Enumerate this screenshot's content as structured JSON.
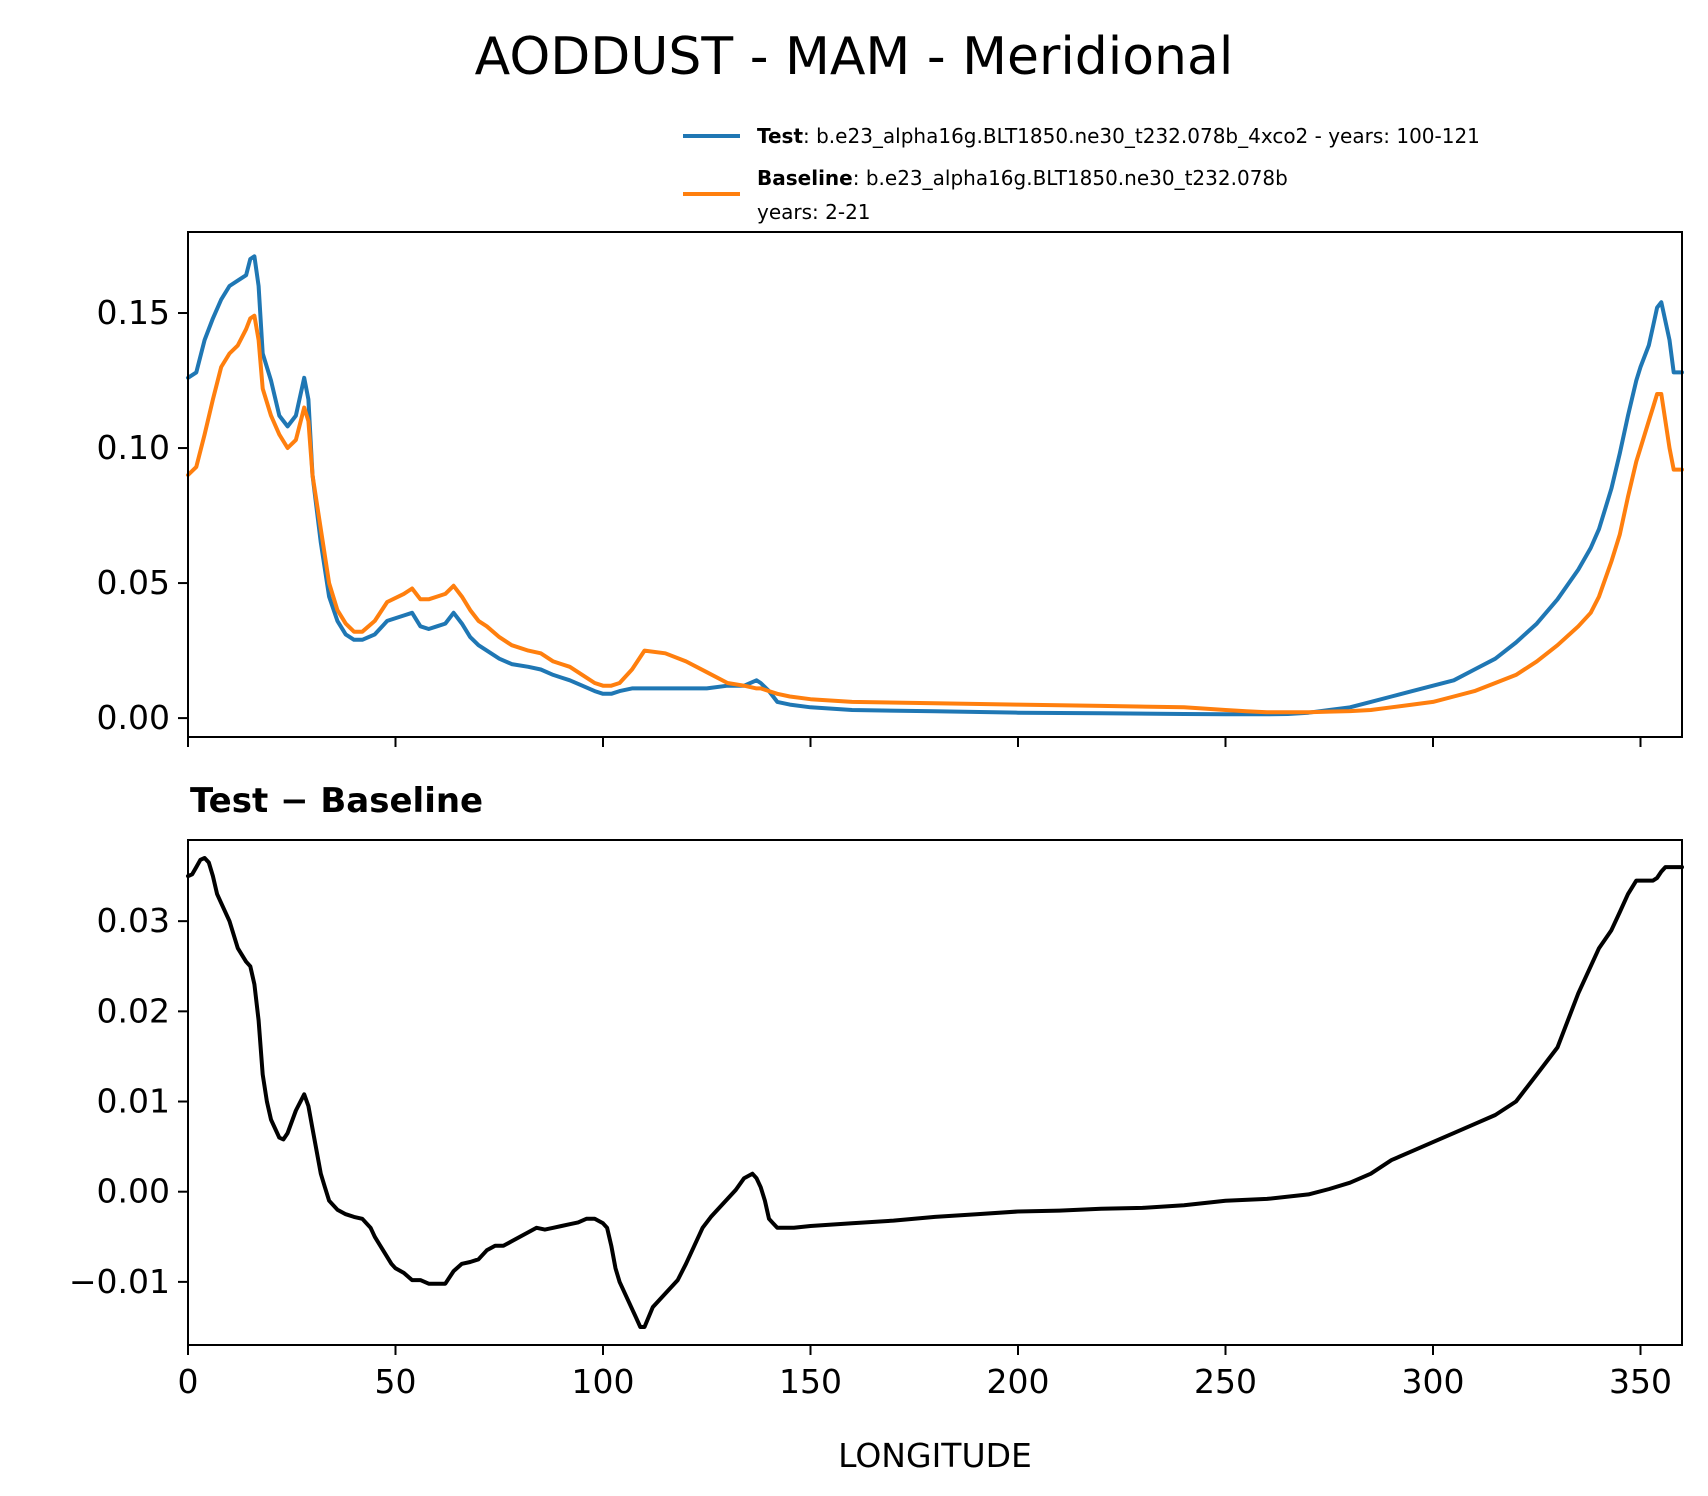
{
  "chart_data": [
    {
      "type": "line",
      "title": "AODDUST - MAM - Meridional",
      "xlim": [
        0,
        360
      ],
      "ylim": [
        -0.007,
        0.18
      ],
      "yticks": [
        "0.00",
        "0.05",
        "0.10",
        "0.15"
      ],
      "grid": false,
      "legend_placement": "top-right",
      "series": [
        {
          "name": "Test",
          "legend_desc": ": b.e23_alpha16g.BLT1850.ne30_t232.078b_4xco2 - years: 100-121",
          "color": "#1f77b4",
          "x": [
            0,
            2,
            4,
            6,
            8,
            10,
            12,
            14,
            15,
            16,
            17,
            18,
            20,
            22,
            24,
            26,
            28,
            29,
            30,
            32,
            34,
            36,
            38,
            40,
            42,
            45,
            48,
            52,
            54,
            56,
            58,
            60,
            62,
            64,
            66,
            68,
            70,
            72,
            75,
            78,
            82,
            85,
            88,
            90,
            92,
            95,
            98,
            100,
            102,
            104,
            107,
            110,
            115,
            120,
            125,
            130,
            134,
            137,
            138,
            140,
            142,
            145,
            150,
            160,
            180,
            200,
            220,
            240,
            250,
            255,
            260,
            265,
            270,
            275,
            280,
            285,
            290,
            295,
            300,
            305,
            310,
            315,
            320,
            325,
            330,
            335,
            338,
            340,
            343,
            345,
            347,
            349,
            350,
            352,
            353,
            354,
            355,
            357,
            358,
            360
          ],
          "y": [
            0.126,
            0.128,
            0.14,
            0.148,
            0.155,
            0.16,
            0.162,
            0.164,
            0.17,
            0.171,
            0.16,
            0.135,
            0.125,
            0.112,
            0.108,
            0.112,
            0.126,
            0.118,
            0.09,
            0.065,
            0.045,
            0.036,
            0.031,
            0.029,
            0.029,
            0.031,
            0.036,
            0.038,
            0.039,
            0.034,
            0.033,
            0.034,
            0.035,
            0.039,
            0.035,
            0.03,
            0.027,
            0.025,
            0.022,
            0.02,
            0.019,
            0.018,
            0.016,
            0.015,
            0.014,
            0.012,
            0.01,
            0.009,
            0.009,
            0.01,
            0.011,
            0.011,
            0.011,
            0.011,
            0.011,
            0.012,
            0.012,
            0.014,
            0.013,
            0.01,
            0.006,
            0.005,
            0.004,
            0.003,
            0.0025,
            0.002,
            0.0018,
            0.0015,
            0.0014,
            0.0014,
            0.0014,
            0.0015,
            0.002,
            0.003,
            0.004,
            0.006,
            0.008,
            0.01,
            0.012,
            0.014,
            0.018,
            0.022,
            0.028,
            0.035,
            0.044,
            0.055,
            0.063,
            0.07,
            0.085,
            0.098,
            0.112,
            0.125,
            0.13,
            0.138,
            0.145,
            0.152,
            0.154,
            0.14,
            0.128,
            0.128
          ]
        },
        {
          "name": "Baseline",
          "legend_desc": ": b.e23_alpha16g.BLT1850.ne30_t232.078b",
          "legend_desc2": "years: 2-21",
          "color": "#ff7f0e",
          "x": [
            0,
            2,
            4,
            6,
            8,
            10,
            12,
            14,
            15,
            16,
            17,
            18,
            20,
            22,
            24,
            26,
            28,
            29,
            30,
            32,
            34,
            36,
            38,
            40,
            42,
            45,
            48,
            52,
            54,
            56,
            58,
            60,
            62,
            64,
            66,
            68,
            70,
            72,
            75,
            78,
            82,
            85,
            88,
            90,
            92,
            95,
            98,
            100,
            102,
            104,
            107,
            110,
            115,
            120,
            125,
            130,
            134,
            137,
            138,
            140,
            142,
            145,
            150,
            160,
            180,
            200,
            220,
            240,
            250,
            255,
            260,
            265,
            270,
            275,
            280,
            285,
            290,
            295,
            300,
            305,
            310,
            315,
            320,
            325,
            330,
            335,
            338,
            340,
            343,
            345,
            347,
            349,
            350,
            352,
            353,
            354,
            355,
            357,
            358,
            360
          ],
          "y": [
            0.09,
            0.093,
            0.105,
            0.118,
            0.13,
            0.135,
            0.138,
            0.144,
            0.148,
            0.149,
            0.14,
            0.122,
            0.112,
            0.105,
            0.1,
            0.103,
            0.115,
            0.11,
            0.09,
            0.07,
            0.05,
            0.04,
            0.035,
            0.032,
            0.032,
            0.036,
            0.043,
            0.046,
            0.048,
            0.044,
            0.044,
            0.045,
            0.046,
            0.049,
            0.045,
            0.04,
            0.036,
            0.034,
            0.03,
            0.027,
            0.025,
            0.024,
            0.021,
            0.02,
            0.019,
            0.016,
            0.013,
            0.012,
            0.012,
            0.013,
            0.018,
            0.025,
            0.024,
            0.021,
            0.017,
            0.013,
            0.012,
            0.011,
            0.011,
            0.01,
            0.009,
            0.008,
            0.007,
            0.006,
            0.0055,
            0.005,
            0.0045,
            0.004,
            0.003,
            0.0025,
            0.0022,
            0.0022,
            0.0022,
            0.0024,
            0.0026,
            0.003,
            0.004,
            0.005,
            0.006,
            0.008,
            0.01,
            0.013,
            0.016,
            0.021,
            0.027,
            0.034,
            0.039,
            0.045,
            0.058,
            0.068,
            0.082,
            0.095,
            0.1,
            0.11,
            0.115,
            0.12,
            0.12,
            0.1,
            0.092,
            0.092
          ]
        }
      ]
    },
    {
      "type": "line",
      "title": "Test − Baseline",
      "xlabel": "LONGITUDE",
      "xlim": [
        0,
        360
      ],
      "ylim": [
        -0.017,
        0.039
      ],
      "xticks": [
        "0",
        "50",
        "100",
        "150",
        "200",
        "250",
        "300",
        "350"
      ],
      "yticks": [
        "−0.01",
        "0.00",
        "0.01",
        "0.02",
        "0.03"
      ],
      "grid": false,
      "series": [
        {
          "color": "#000000",
          "x": [
            0,
            1,
            2,
            3,
            4,
            5,
            6,
            7,
            8,
            10,
            12,
            14,
            15,
            16,
            17,
            18,
            19,
            20,
            22,
            23,
            24,
            26,
            28,
            29,
            30,
            32,
            33,
            34,
            36,
            38,
            40,
            42,
            44,
            45,
            47,
            49,
            50,
            52,
            54,
            56,
            58,
            60,
            62,
            64,
            66,
            68,
            70,
            72,
            74,
            76,
            78,
            80,
            82,
            84,
            86,
            88,
            90,
            92,
            94,
            96,
            98,
            100,
            101,
            102,
            103,
            104,
            106,
            108,
            109,
            110,
            112,
            114,
            116,
            118,
            120,
            122,
            124,
            126,
            128,
            130,
            132,
            134,
            136,
            137,
            138,
            139,
            140,
            141,
            142,
            144,
            146,
            150,
            160,
            170,
            180,
            190,
            200,
            210,
            220,
            230,
            240,
            250,
            260,
            270,
            275,
            280,
            285,
            290,
            295,
            300,
            305,
            310,
            315,
            320,
            325,
            330,
            335,
            338,
            340,
            343,
            345,
            347,
            349,
            350,
            352,
            353,
            354,
            355,
            356,
            357,
            358,
            360
          ],
          "y": [
            0.035,
            0.0352,
            0.036,
            0.0368,
            0.037,
            0.0365,
            0.035,
            0.033,
            0.032,
            0.03,
            0.027,
            0.0255,
            0.025,
            0.023,
            0.019,
            0.013,
            0.01,
            0.008,
            0.006,
            0.0058,
            0.0065,
            0.009,
            0.0108,
            0.0095,
            0.007,
            0.002,
            0.0005,
            -0.001,
            -0.002,
            -0.0025,
            -0.0028,
            -0.003,
            -0.004,
            -0.005,
            -0.0065,
            -0.008,
            -0.0085,
            -0.009,
            -0.0098,
            -0.0098,
            -0.0102,
            -0.0102,
            -0.0102,
            -0.0088,
            -0.008,
            -0.0078,
            -0.0075,
            -0.0065,
            -0.006,
            -0.006,
            -0.0055,
            -0.005,
            -0.0045,
            -0.004,
            -0.0042,
            -0.004,
            -0.0038,
            -0.0036,
            -0.0034,
            -0.003,
            -0.003,
            -0.0035,
            -0.004,
            -0.006,
            -0.0085,
            -0.01,
            -0.012,
            -0.014,
            -0.015,
            -0.015,
            -0.0128,
            -0.0118,
            -0.0108,
            -0.0098,
            -0.008,
            -0.006,
            -0.004,
            -0.0028,
            -0.0018,
            -0.0008,
            0.0002,
            0.0015,
            0.002,
            0.0015,
            0.0005,
            -0.001,
            -0.003,
            -0.0035,
            -0.004,
            -0.004,
            -0.004,
            -0.0038,
            -0.0035,
            -0.0032,
            -0.0028,
            -0.0025,
            -0.0022,
            -0.0021,
            -0.0019,
            -0.0018,
            -0.0015,
            -0.001,
            -0.0008,
            -0.0003,
            0.0003,
            0.001,
            0.002,
            0.0035,
            0.0045,
            0.0055,
            0.0065,
            0.0075,
            0.0085,
            0.01,
            0.013,
            0.016,
            0.022,
            0.025,
            0.027,
            0.029,
            0.031,
            0.033,
            0.0345,
            0.0345,
            0.0345,
            0.0345,
            0.0348,
            0.0355,
            0.036,
            0.036,
            0.036,
            0.036
          ]
        }
      ]
    }
  ]
}
